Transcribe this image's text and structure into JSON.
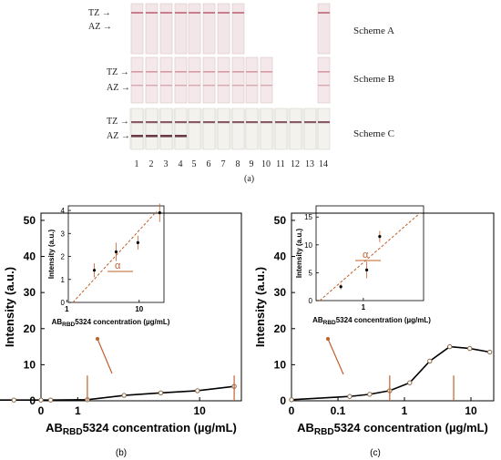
{
  "panel_a": {
    "caption": "(a)",
    "tz_label": "TZ →",
    "az_label": "AZ →",
    "schemes": [
      "Scheme A",
      "Scheme B",
      "Scheme C"
    ],
    "lane_numbers": [
      "1",
      "2",
      "3",
      "4",
      "5",
      "6",
      "7",
      "8",
      "9",
      "10",
      "11",
      "12",
      "13",
      "14"
    ]
  },
  "chart_data": [
    {
      "id": "b",
      "caption": "(b)",
      "type": "line",
      "xlabel": "AB",
      "xlabel_sub": "RBD",
      "xlabel_rest": "5324 concentration (µg/mL)",
      "ylabel": "Intensity (a.u.)",
      "xscale": "log",
      "xticks": [
        "0",
        "1",
        "10"
      ],
      "ylim": [
        0,
        52
      ],
      "yticks": [
        "0",
        "10",
        "20",
        "30",
        "40",
        "50"
      ],
      "x": [
        0,
        0.15,
        0.3,
        0.6,
        1.2,
        2.4,
        4.8,
        9.6,
        19.2
      ],
      "y": [
        0.2,
        0.2,
        0.2,
        0.2,
        0.3,
        1.5,
        2.2,
        2.8,
        4.0
      ],
      "inset": {
        "ylabel": "Intensity (a.u.)",
        "xlabel": "AB",
        "xlabel_sub": "RBD",
        "xlabel_rest": "5324 concentration (µg/mL)",
        "xticks": [
          "1",
          "10"
        ],
        "yticks": [
          "0",
          "1",
          "2",
          "3",
          "4"
        ],
        "ylim": [
          0,
          4.2
        ],
        "x": [
          2.4,
          4.8,
          9.6,
          19.2
        ],
        "y": [
          1.4,
          2.2,
          2.6,
          3.9
        ],
        "err": [
          0.3,
          0.4,
          0.3,
          0.4
        ],
        "annotation": "α"
      }
    },
    {
      "id": "c",
      "caption": "(c)",
      "type": "line",
      "xlabel": "AB",
      "xlabel_sub": "RBD",
      "xlabel_rest": "5324 concentration (µg/mL)",
      "ylabel": "Intensity (a.u.)",
      "xscale": "log",
      "xticks": [
        "0",
        "0.1",
        "1",
        "10"
      ],
      "ylim": [
        0,
        52
      ],
      "yticks": [
        "0",
        "10",
        "20",
        "30",
        "40",
        "50"
      ],
      "x": [
        0,
        0.15,
        0.3,
        0.6,
        1.2,
        2.4,
        4.8,
        9.6,
        19.2
      ],
      "y": [
        0.3,
        1.2,
        1.8,
        2.8,
        5.0,
        11.0,
        15.0,
        14.5,
        13.5
      ],
      "inset": {
        "ylabel": "Intensity (a.u.)",
        "xlabel": "AB",
        "xlabel_sub": "RBD",
        "xlabel_rest": "5324 concentration (µg/mL)",
        "xticks": [
          "1"
        ],
        "yticks": [
          "0",
          "5",
          "10",
          "15"
        ],
        "ylim": [
          0,
          17
        ],
        "x": [
          0.3,
          1.2,
          2.4
        ],
        "y": [
          2.5,
          5.5,
          11.5
        ],
        "err": [
          0.5,
          1.5,
          1.0
        ],
        "annotation": "α"
      }
    }
  ]
}
